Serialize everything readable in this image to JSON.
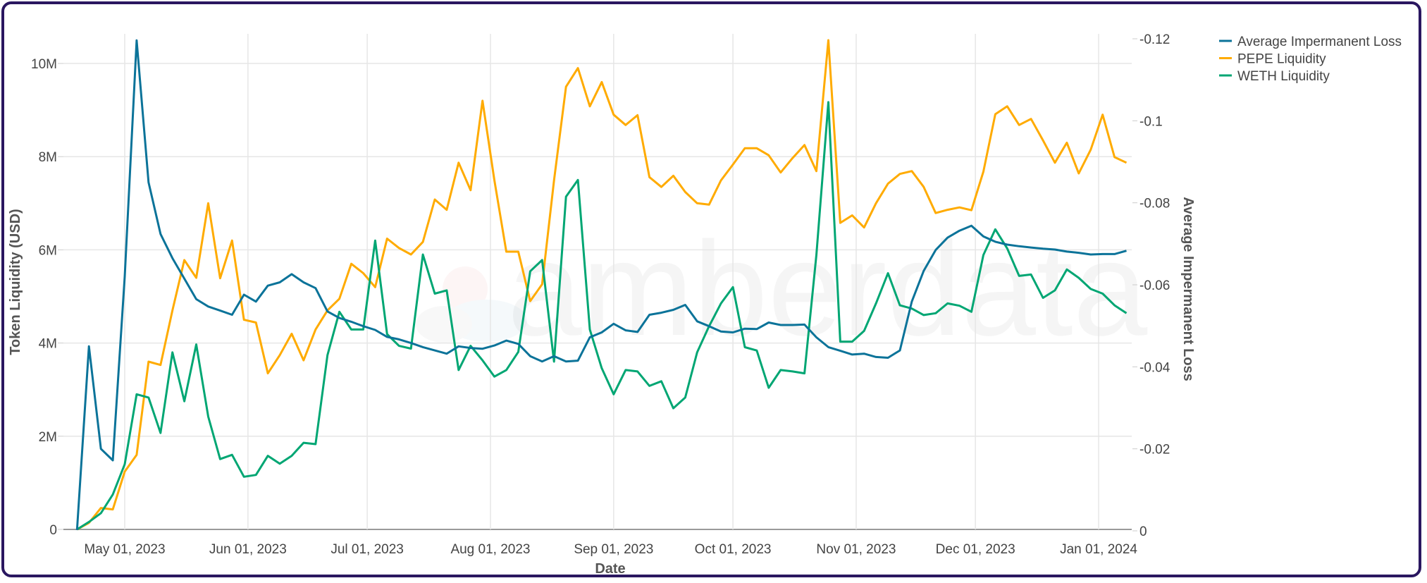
{
  "chart_data": {
    "type": "line",
    "title": "",
    "xlabel": "Date",
    "ylabel": "Token Liquidity (USD)",
    "y2label": "Average Impermanent Loss",
    "watermark": "amberdata",
    "grid": true,
    "legend_position": "top-right",
    "ylim": [
      0,
      10.55
    ],
    "y_unit": "M USD",
    "y2lim": [
      -0.12,
      0
    ],
    "x_ticks": [
      {
        "date": "2023-05-01",
        "label": "May 01, 2023"
      },
      {
        "date": "2023-06-01",
        "label": "Jun 01, 2023"
      },
      {
        "date": "2023-07-01",
        "label": "Jul 01, 2023"
      },
      {
        "date": "2023-08-01",
        "label": "Aug 01, 2023"
      },
      {
        "date": "2023-09-01",
        "label": "Sep 01, 2023"
      },
      {
        "date": "2023-10-01",
        "label": "Oct 01, 2023"
      },
      {
        "date": "2023-11-01",
        "label": "Nov 01, 2023"
      },
      {
        "date": "2023-12-01",
        "label": "Dec 01, 2023"
      },
      {
        "date": "2024-01-01",
        "label": "Jan 01, 2024"
      }
    ],
    "y_ticks": [
      {
        "value": 0,
        "label": "0"
      },
      {
        "value": 2,
        "label": "2M"
      },
      {
        "value": 4,
        "label": "4M"
      },
      {
        "value": 6,
        "label": "6M"
      },
      {
        "value": 8,
        "label": "8M"
      },
      {
        "value": 10,
        "label": "10M"
      }
    ],
    "y2_ticks": [
      {
        "value": 0,
        "label": "0"
      },
      {
        "value": -0.02,
        "label": "-0.02"
      },
      {
        "value": -0.04,
        "label": "-0.04"
      },
      {
        "value": -0.06,
        "label": "-0.06"
      },
      {
        "value": -0.08,
        "label": "-0.08"
      },
      {
        "value": -0.1,
        "label": "-0.1"
      },
      {
        "value": -0.12,
        "label": "-0.12"
      }
    ],
    "x": [
      "2023-04-19",
      "2023-04-22",
      "2023-04-25",
      "2023-04-28",
      "2023-05-01",
      "2023-05-04",
      "2023-05-07",
      "2023-05-10",
      "2023-05-13",
      "2023-05-16",
      "2023-05-19",
      "2023-05-22",
      "2023-05-25",
      "2023-05-28",
      "2023-05-31",
      "2023-06-03",
      "2023-06-06",
      "2023-06-09",
      "2023-06-12",
      "2023-06-15",
      "2023-06-18",
      "2023-06-21",
      "2023-06-24",
      "2023-06-27",
      "2023-06-30",
      "2023-07-03",
      "2023-07-06",
      "2023-07-09",
      "2023-07-12",
      "2023-07-15",
      "2023-07-18",
      "2023-07-21",
      "2023-07-24",
      "2023-07-27",
      "2023-07-30",
      "2023-08-02",
      "2023-08-05",
      "2023-08-08",
      "2023-08-11",
      "2023-08-14",
      "2023-08-17",
      "2023-08-20",
      "2023-08-23",
      "2023-08-26",
      "2023-08-29",
      "2023-09-01",
      "2023-09-04",
      "2023-09-07",
      "2023-09-10",
      "2023-09-13",
      "2023-09-16",
      "2023-09-19",
      "2023-09-22",
      "2023-09-25",
      "2023-09-28",
      "2023-10-01",
      "2023-10-04",
      "2023-10-07",
      "2023-10-10",
      "2023-10-13",
      "2023-10-16",
      "2023-10-19",
      "2023-10-22",
      "2023-10-25",
      "2023-10-28",
      "2023-10-31",
      "2023-11-03",
      "2023-11-06",
      "2023-11-09",
      "2023-11-12",
      "2023-11-15",
      "2023-11-18",
      "2023-11-21",
      "2023-11-24",
      "2023-11-27",
      "2023-11-30",
      "2023-12-03",
      "2023-12-06",
      "2023-12-09",
      "2023-12-12",
      "2023-12-15",
      "2023-12-18",
      "2023-12-21",
      "2023-12-24",
      "2023-12-27",
      "2023-12-30",
      "2024-01-02",
      "2024-01-05",
      "2024-01-08"
    ],
    "series": [
      {
        "name": "Average Impermanent Loss",
        "axis": "right",
        "color": "#0b7399",
        "values": [
          -0.0002,
          -0.045,
          -0.02,
          -0.0172,
          -0.062,
          -0.1196,
          -0.085,
          -0.0724,
          -0.0665,
          -0.0615,
          -0.0565,
          -0.0547,
          -0.0537,
          -0.0527,
          -0.0576,
          -0.0559,
          -0.0598,
          -0.0606,
          -0.0626,
          -0.0606,
          -0.0592,
          -0.0535,
          -0.0519,
          -0.051,
          -0.0499,
          -0.049,
          -0.0473,
          -0.0467,
          -0.0458,
          -0.0448,
          -0.044,
          -0.0432,
          -0.045,
          -0.0446,
          -0.0444,
          -0.0452,
          -0.0464,
          -0.0456,
          -0.0426,
          -0.0413,
          -0.0426,
          -0.0413,
          -0.0415,
          -0.0472,
          -0.0484,
          -0.0505,
          -0.0489,
          -0.0485,
          -0.0527,
          -0.0532,
          -0.0539,
          -0.0551,
          -0.0511,
          -0.0499,
          -0.0486,
          -0.0484,
          -0.0493,
          -0.0492,
          -0.0508,
          -0.0502,
          -0.0502,
          -0.0503,
          -0.0472,
          -0.0448,
          -0.0439,
          -0.043,
          -0.0432,
          -0.0424,
          -0.0422,
          -0.044,
          -0.0559,
          -0.0634,
          -0.0685,
          -0.0715,
          -0.0732,
          -0.0744,
          -0.0718,
          -0.0705,
          -0.0698,
          -0.0694,
          -0.0691,
          -0.0688,
          -0.0686,
          -0.0681,
          -0.0678,
          -0.0674,
          -0.0675,
          -0.0675,
          -0.0683
        ]
      },
      {
        "name": "PEPE Liquidity",
        "axis": "left",
        "color": "#ffab00",
        "values": [
          0,
          0.14,
          0.46,
          0.43,
          1.24,
          1.6,
          3.6,
          3.53,
          4.7,
          5.78,
          5.4,
          7.0,
          5.39,
          6.2,
          4.5,
          4.44,
          3.35,
          3.74,
          4.2,
          3.63,
          4.29,
          4.7,
          4.95,
          5.7,
          5.5,
          5.2,
          6.24,
          6.04,
          5.9,
          6.17,
          7.08,
          6.86,
          7.87,
          7.28,
          9.2,
          7.49,
          5.96,
          5.96,
          4.9,
          5.26,
          7.49,
          9.5,
          9.9,
          9.08,
          9.6,
          8.9,
          8.68,
          8.89,
          7.56,
          7.35,
          7.59,
          7.24,
          7.0,
          6.97,
          7.49,
          7.83,
          8.18,
          8.18,
          8.03,
          7.66,
          7.97,
          8.25,
          7.69,
          10.5,
          6.58,
          6.74,
          6.48,
          7.0,
          7.42,
          7.63,
          7.69,
          7.35,
          6.79,
          6.86,
          6.91,
          6.85,
          7.68,
          8.91,
          9.08,
          8.68,
          8.81,
          8.35,
          7.87,
          8.3,
          7.64,
          8.15,
          8.9,
          7.99,
          7.87
        ]
      },
      {
        "name": "WETH Liquidity",
        "axis": "left",
        "color": "#00a673",
        "values": [
          0,
          0.16,
          0.35,
          0.75,
          1.4,
          2.9,
          2.83,
          2.07,
          3.8,
          2.75,
          3.97,
          2.42,
          1.51,
          1.6,
          1.13,
          1.17,
          1.58,
          1.41,
          1.58,
          1.86,
          1.83,
          3.74,
          4.67,
          4.29,
          4.29,
          6.2,
          4.19,
          3.94,
          3.88,
          5.9,
          5.06,
          5.13,
          3.42,
          3.94,
          3.63,
          3.28,
          3.42,
          3.81,
          5.54,
          5.78,
          3.6,
          7.14,
          7.5,
          4.29,
          3.46,
          2.9,
          3.42,
          3.39,
          3.08,
          3.18,
          2.6,
          2.83,
          3.8,
          4.36,
          4.85,
          5.2,
          3.91,
          3.84,
          3.04,
          3.42,
          3.39,
          3.35,
          5.89,
          9.17,
          4.03,
          4.03,
          4.26,
          4.85,
          5.5,
          4.81,
          4.74,
          4.6,
          4.64,
          4.85,
          4.8,
          4.67,
          5.89,
          6.44,
          6.03,
          5.44,
          5.47,
          4.97,
          5.13,
          5.58,
          5.4,
          5.16,
          5.06,
          4.81,
          4.64
        ]
      }
    ]
  }
}
